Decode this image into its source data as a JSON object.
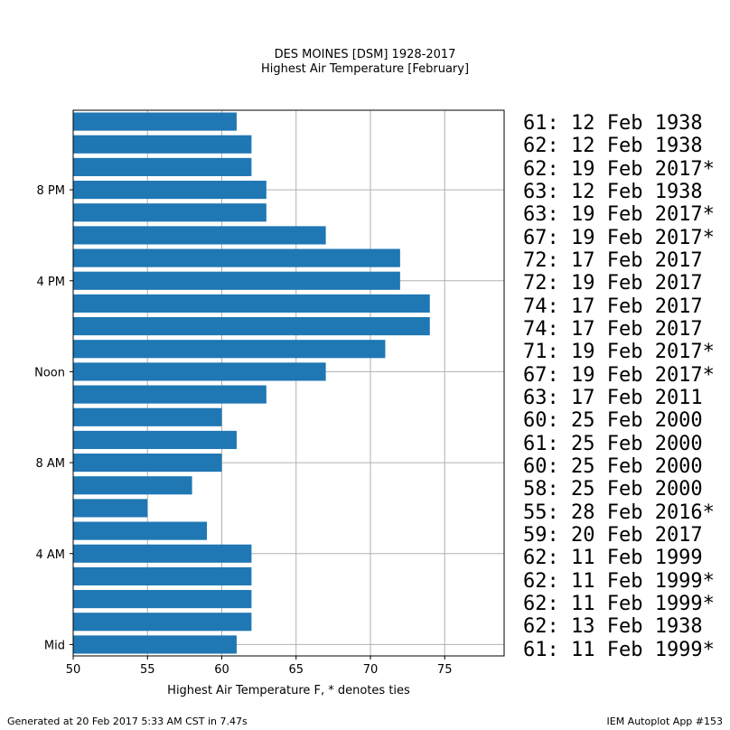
{
  "header": {
    "title": "DES MOINES [DSM] 1928-2017",
    "subtitle": "Highest Air Temperature [February]"
  },
  "chart_data": {
    "type": "bar",
    "orientation": "horizontal",
    "title": "DES MOINES [DSM] 1928-2017",
    "subtitle": "Highest Air Temperature [February]",
    "xlabel": "Highest Air Temperature F, * denotes ties",
    "ylabel": "",
    "xlim": [
      50,
      79
    ],
    "x_ticks": [
      50,
      55,
      60,
      65,
      70,
      75
    ],
    "y_ticks": [
      {
        "hour": 0,
        "label": "Mid"
      },
      {
        "hour": 4,
        "label": "4 AM"
      },
      {
        "hour": 8,
        "label": "8 AM"
      },
      {
        "hour": 12,
        "label": "Noon"
      },
      {
        "hour": 16,
        "label": "4 PM"
      },
      {
        "hour": 20,
        "label": "8 PM"
      }
    ],
    "grid": true,
    "bar_color": "#1f77b4",
    "hours": [
      0,
      1,
      2,
      3,
      4,
      5,
      6,
      7,
      8,
      9,
      10,
      11,
      12,
      13,
      14,
      15,
      16,
      17,
      18,
      19,
      20,
      21,
      22,
      23
    ],
    "values": [
      61,
      62,
      62,
      62,
      62,
      59,
      55,
      58,
      60,
      61,
      60,
      63,
      67,
      71,
      74,
      74,
      72,
      72,
      67,
      63,
      63,
      62,
      62,
      61
    ]
  },
  "records": [
    "61: 12 Feb 1938",
    "62: 12 Feb 1938",
    "62: 19 Feb 2017*",
    "63: 12 Feb 1938",
    "63: 19 Feb 2017*",
    "67: 19 Feb 2017*",
    "72: 17 Feb 2017",
    "72: 19 Feb 2017",
    "74: 17 Feb 2017",
    "74: 17 Feb 2017",
    "71: 19 Feb 2017*",
    "67: 19 Feb 2017*",
    "63: 17 Feb 2011",
    "60: 25 Feb 2000",
    "61: 25 Feb 2000",
    "60: 25 Feb 2000",
    "58: 25 Feb 2000",
    "55: 28 Feb 2016*",
    "59: 20 Feb 2017",
    "62: 11 Feb 1999",
    "62: 11 Feb 1999*",
    "62: 11 Feb 1999*",
    "62: 13 Feb 1938",
    "61: 11 Feb 1999*"
  ],
  "footer": {
    "generated": "Generated at 20 Feb 2017 5:33 AM CST in 7.47s",
    "app": "IEM Autoplot App #153"
  }
}
